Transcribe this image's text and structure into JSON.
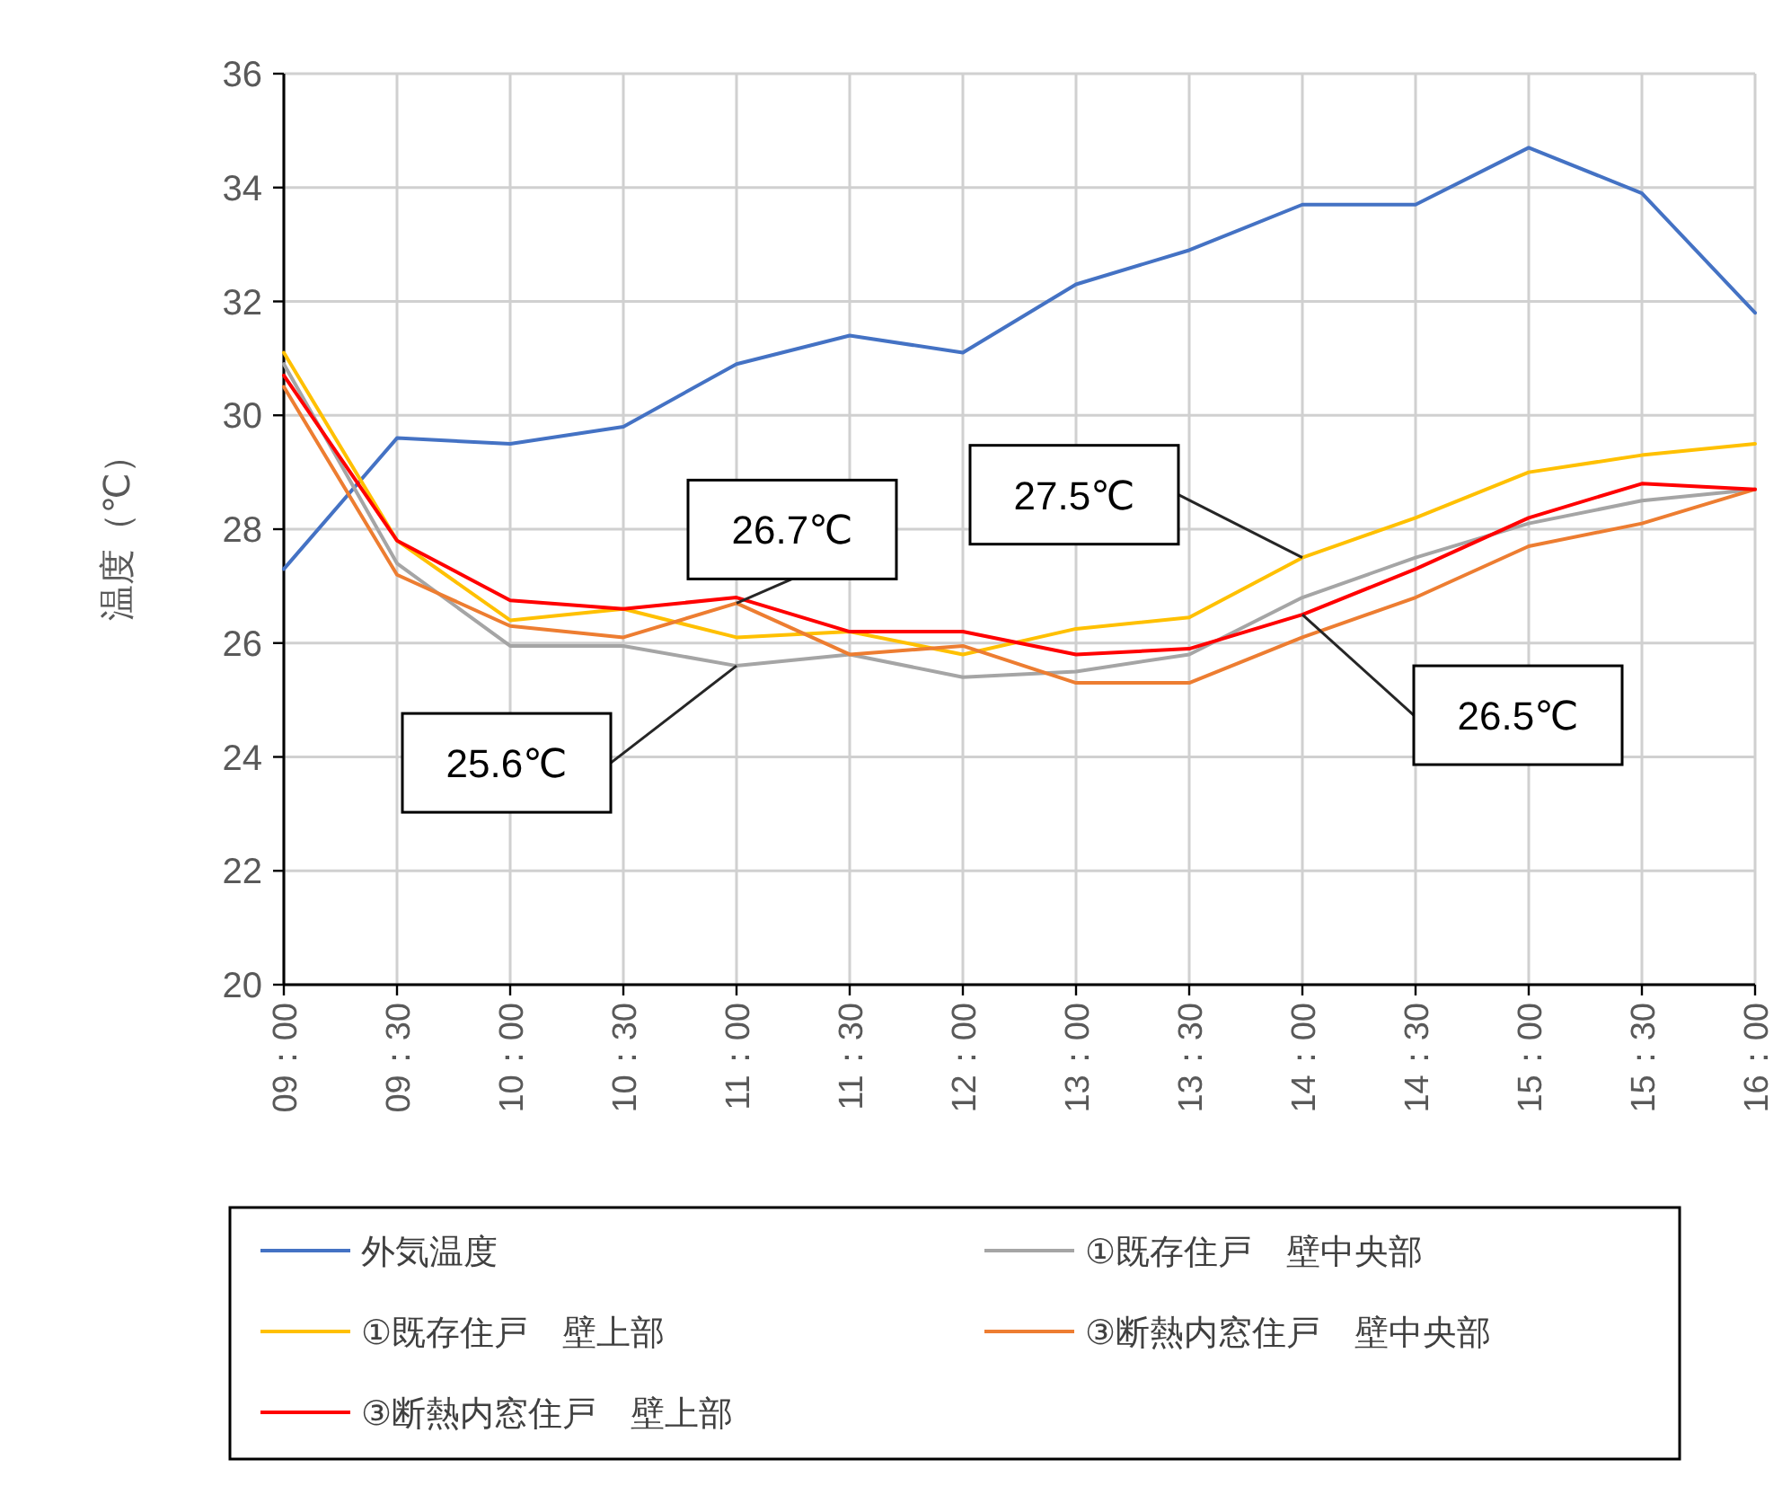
{
  "chart_data": {
    "type": "line",
    "ylabel": "温度（℃）",
    "categories": [
      "09：00",
      "09：30",
      "10：00",
      "10：30",
      "11：00",
      "11：30",
      "12：00",
      "13：00",
      "13：30",
      "14：00",
      "14：30",
      "15：00",
      "15：30",
      "16：00"
    ],
    "series": [
      {
        "name": "外気温度",
        "color": "#4472c4",
        "values": [
          27.3,
          29.6,
          29.5,
          29.8,
          30.9,
          31.4,
          31.1,
          32.3,
          32.9,
          33.7,
          33.7,
          34.7,
          33.9,
          31.8
        ]
      },
      {
        "name": "①既存住戸　壁中央部",
        "color": "#a5a5a5",
        "values": [
          30.9,
          27.4,
          25.95,
          25.95,
          25.6,
          25.8,
          25.4,
          25.5,
          25.8,
          26.8,
          27.5,
          28.1,
          28.5,
          28.7
        ]
      },
      {
        "name": "①既存住戸　壁上部",
        "color": "#ffc000",
        "values": [
          31.1,
          27.8,
          26.4,
          26.6,
          26.1,
          26.2,
          25.8,
          26.25,
          26.45,
          27.5,
          28.2,
          29.0,
          29.3,
          29.5
        ]
      },
      {
        "name": "③断熱内窓住戸　壁中央部",
        "color": "#ed7d31",
        "values": [
          30.5,
          27.2,
          26.3,
          26.1,
          26.7,
          25.8,
          25.95,
          25.3,
          25.3,
          26.1,
          26.8,
          27.7,
          28.1,
          28.7
        ]
      },
      {
        "name": "③断熱内窓住戸　壁上部",
        "color": "#ff0000",
        "values": [
          30.7,
          27.8,
          26.75,
          26.6,
          26.8,
          26.2,
          26.2,
          25.8,
          25.9,
          26.5,
          27.3,
          28.2,
          28.8,
          28.7
        ]
      }
    ],
    "ylim": [
      20,
      36
    ],
    "yticks": [
      20,
      22,
      24,
      26,
      28,
      30,
      32,
      34,
      36
    ],
    "grid": true,
    "legend": "bottom",
    "marker": "none",
    "line_style": "solid",
    "annotations": [
      {
        "text": "26.7℃",
        "x": "11：00",
        "y": 26.7
      },
      {
        "text": "25.6℃",
        "x": "11：00",
        "y": 25.6
      },
      {
        "text": "27.5℃",
        "x": "14：00",
        "y": 27.5
      },
      {
        "text": "26.5℃",
        "x": "14：00",
        "y": 26.5
      }
    ]
  }
}
